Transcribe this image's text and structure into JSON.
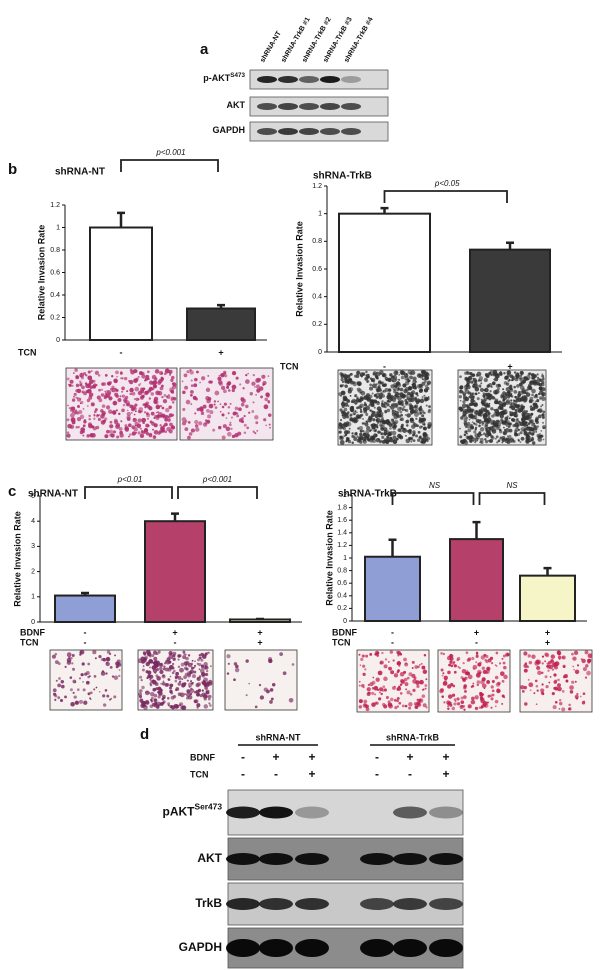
{
  "panel_letters": [
    "a",
    "b",
    "c",
    "d"
  ],
  "blot_a": {
    "lanes": [
      "shRNA-NT",
      "shRNA-TrkB #1",
      "shRNA-TrkB #2",
      "shRNA-TrkB #3",
      "shRNA-TrkB #4"
    ],
    "rows": [
      {
        "label": "p-AKT",
        "sup": "S473"
      },
      {
        "label": "AKT"
      },
      {
        "label": "GAPDH"
      }
    ]
  },
  "blot_d": {
    "groups": [
      "shRNA-NT",
      "shRNA-TrkB"
    ],
    "factors": [
      {
        "name": "BDNF",
        "levels": [
          "-",
          "+",
          "+",
          "-",
          "+",
          "+"
        ]
      },
      {
        "name": "TCN",
        "levels": [
          "-",
          "-",
          "+",
          "-",
          "-",
          "+"
        ]
      }
    ],
    "rows": [
      {
        "label": "pAKT",
        "sup": "Ser473"
      },
      {
        "label": "AKT"
      },
      {
        "label": "TrkB"
      },
      {
        "label": "GAPDH"
      }
    ]
  },
  "chart_data": [
    {
      "type": "bar",
      "title": "shRNA-NT",
      "ylabel": "Relative Invasion Rate",
      "factors": [
        {
          "name": "TCN",
          "levels": [
            "-",
            "+"
          ]
        }
      ],
      "values": [
        1.0,
        0.28
      ],
      "errors": [
        0.13,
        0.03
      ],
      "colors": [
        "#ffffff",
        "#3a3a3a"
      ],
      "ylim": [
        0,
        1.2
      ],
      "yticks": [
        0,
        0.2,
        0.4,
        0.6,
        0.8,
        1,
        1.2
      ],
      "annotations": [
        "p<0.001"
      ]
    },
    {
      "type": "bar",
      "title": "shRNA-TrkB",
      "ylabel": "Relative Invasion Rate",
      "factors": [
        {
          "name": "TCN",
          "levels": [
            "-",
            "+"
          ]
        }
      ],
      "values": [
        1.0,
        0.74
      ],
      "errors": [
        0.04,
        0.05
      ],
      "colors": [
        "#ffffff",
        "#3a3a3a"
      ],
      "ylim": [
        0,
        1.2
      ],
      "yticks": [
        0,
        0.2,
        0.4,
        0.6,
        0.8,
        1,
        1.2
      ],
      "annotations": [
        "p<0.05"
      ]
    },
    {
      "type": "bar",
      "title": "shRNA-NT",
      "ylabel": "Relative Invasion Rate",
      "factors": [
        {
          "name": "BDNF",
          "levels": [
            "-",
            "+",
            "+"
          ]
        },
        {
          "name": "TCN",
          "levels": [
            "-",
            "-",
            "+"
          ]
        }
      ],
      "values": [
        1.05,
        4.0,
        0.1
      ],
      "errors": [
        0.1,
        0.3,
        0.02
      ],
      "colors": [
        "#8f9fd6",
        "#b5406a",
        "#f6f5c8"
      ],
      "ylim": [
        0,
        5
      ],
      "yticks": [
        0,
        1,
        2,
        3,
        4,
        5
      ],
      "annotations": [
        "p<0.01",
        "p<0.001"
      ]
    },
    {
      "type": "bar",
      "title": "shRNA-TrkB",
      "ylabel": "Relative Invasion Rate",
      "factors": [
        {
          "name": "BDNF",
          "levels": [
            "-",
            "+",
            "+"
          ]
        },
        {
          "name": "TCN",
          "levels": [
            "-",
            "-",
            "+"
          ]
        }
      ],
      "values": [
        1.02,
        1.3,
        0.72
      ],
      "errors": [
        0.27,
        0.27,
        0.12
      ],
      "colors": [
        "#8f9fd6",
        "#b5406a",
        "#f6f5c8"
      ],
      "ylim": [
        0,
        2
      ],
      "yticks": [
        0,
        0.2,
        0.4,
        0.6,
        0.8,
        1,
        1.2,
        1.4,
        1.6,
        1.8,
        2
      ],
      "annotations": [
        "NS",
        "NS"
      ]
    }
  ]
}
